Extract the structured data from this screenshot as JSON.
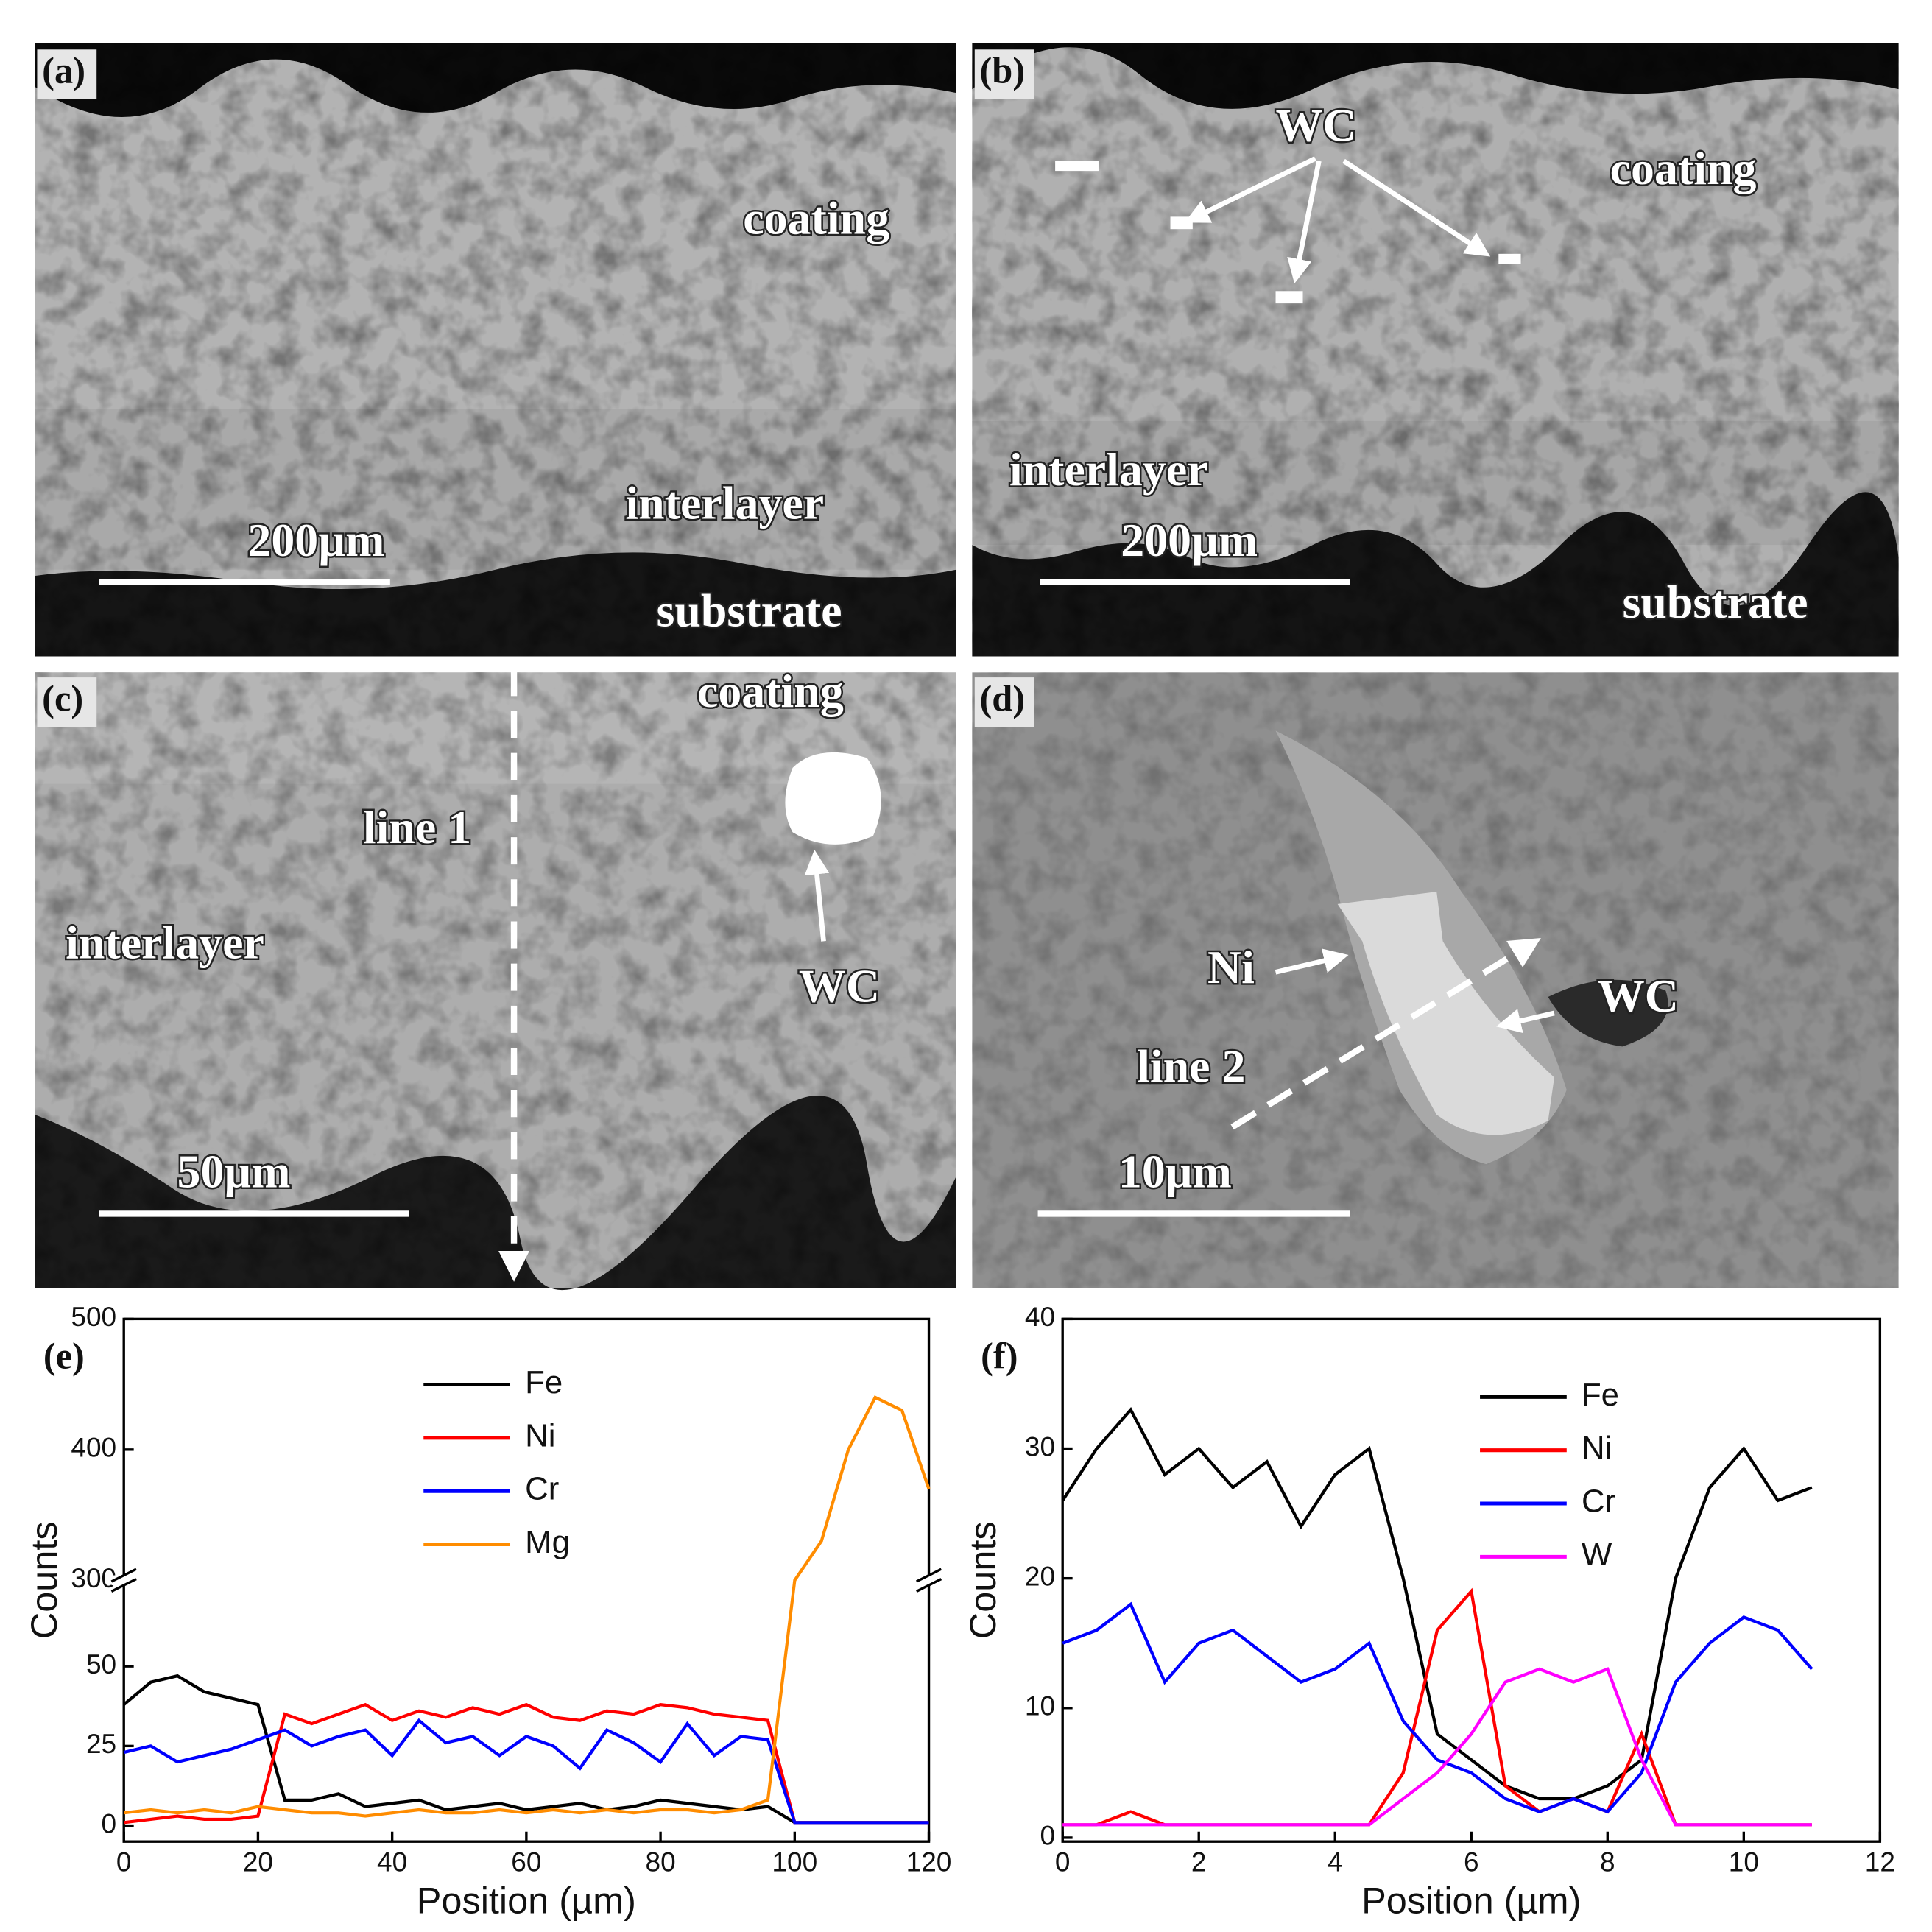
{
  "panels": [
    {
      "label": "(a)",
      "annotations": [
        "coating",
        "interlayer",
        "substrate"
      ],
      "scale_bar": "200µm"
    },
    {
      "label": "(b)",
      "annotations": [
        "WC",
        "coating",
        "interlayer",
        "substrate"
      ],
      "scale_bar": "200µm"
    },
    {
      "label": "(c)",
      "annotations": [
        "coating",
        "line 1",
        "interlayer",
        "WC"
      ],
      "scale_bar": "50µm"
    },
    {
      "label": "(d)",
      "annotations": [
        "Ni",
        "WC",
        "line 2"
      ],
      "scale_bar": "10µm"
    }
  ],
  "chart_data": [
    {
      "type": "line",
      "label": "(e)",
      "xlabel": "Position (µm)",
      "ylabel": "Counts",
      "x": [
        0,
        4,
        8,
        12,
        16,
        20,
        24,
        28,
        32,
        36,
        40,
        44,
        48,
        52,
        56,
        60,
        64,
        68,
        72,
        76,
        80,
        84,
        88,
        92,
        96,
        100,
        104,
        108,
        112,
        116,
        120
      ],
      "xlim": [
        0,
        120
      ],
      "xticks": [
        0,
        20,
        40,
        60,
        80,
        100,
        120
      ],
      "ylim": [
        -5,
        500
      ],
      "ybreak": [
        77,
        300
      ],
      "yticks": [
        0,
        25,
        50,
        300,
        400,
        500
      ],
      "series": [
        {
          "name": "Fe",
          "color": "#000000",
          "values": [
            38,
            45,
            47,
            42,
            40,
            38,
            8,
            8,
            10,
            6,
            7,
            8,
            5,
            6,
            7,
            5,
            6,
            7,
            5,
            6,
            8,
            7,
            6,
            5,
            6,
            1,
            1,
            1,
            1,
            1,
            1
          ]
        },
        {
          "name": "Ni",
          "color": "#ff0000",
          "values": [
            1,
            2,
            3,
            2,
            2,
            3,
            35,
            32,
            35,
            38,
            33,
            36,
            34,
            37,
            35,
            38,
            34,
            33,
            36,
            35,
            38,
            37,
            35,
            34,
            33,
            1,
            1,
            1,
            1,
            1,
            1
          ]
        },
        {
          "name": "Cr",
          "color": "#0000ff",
          "values": [
            23,
            25,
            20,
            22,
            24,
            27,
            30,
            25,
            28,
            30,
            22,
            33,
            26,
            28,
            22,
            28,
            25,
            18,
            30,
            26,
            20,
            32,
            22,
            28,
            27,
            1,
            1,
            1,
            1,
            1,
            1
          ]
        },
        {
          "name": "Mg",
          "color": "#ff8c00",
          "values": [
            4,
            5,
            4,
            5,
            4,
            6,
            5,
            4,
            4,
            3,
            4,
            5,
            4,
            4,
            5,
            4,
            5,
            4,
            5,
            4,
            5,
            5,
            4,
            5,
            8,
            300,
            330,
            400,
            440,
            430,
            370
          ]
        }
      ]
    },
    {
      "type": "line",
      "label": "(f)",
      "xlabel": "Position (µm)",
      "ylabel": "Counts",
      "x": [
        0,
        0.5,
        1,
        1.5,
        2,
        2.5,
        3,
        3.5,
        4,
        4.5,
        5,
        5.5,
        6,
        6.5,
        7,
        7.5,
        8,
        8.5,
        9,
        9.5,
        10,
        10.5,
        11
      ],
      "xlim": [
        0,
        12
      ],
      "xticks": [
        0,
        2,
        4,
        6,
        8,
        10,
        12
      ],
      "ylim": [
        -0.3,
        40
      ],
      "yticks": [
        0,
        10,
        20,
        30,
        40
      ],
      "series": [
        {
          "name": "Fe",
          "color": "#000000",
          "values": [
            26,
            30,
            33,
            28,
            30,
            27,
            29,
            24,
            28,
            30,
            20,
            8,
            6,
            4,
            3,
            3,
            4,
            6,
            20,
            27,
            30,
            26,
            27
          ]
        },
        {
          "name": "Ni",
          "color": "#ff0000",
          "values": [
            1,
            1,
            2,
            1,
            1,
            1,
            1,
            1,
            1,
            1,
            5,
            16,
            19,
            4,
            2,
            3,
            2,
            8,
            1,
            1,
            1,
            1,
            1
          ]
        },
        {
          "name": "Cr",
          "color": "#0000ff",
          "values": [
            15,
            16,
            18,
            12,
            15,
            16,
            14,
            12,
            13,
            15,
            9,
            6,
            5,
            3,
            2,
            3,
            2,
            5,
            12,
            15,
            17,
            16,
            13
          ]
        },
        {
          "name": "W",
          "color": "#ff00ff",
          "values": [
            1,
            1,
            1,
            1,
            1,
            1,
            1,
            1,
            1,
            1,
            3,
            5,
            8,
            12,
            13,
            12,
            13,
            6,
            1,
            1,
            1,
            1,
            1
          ]
        }
      ]
    }
  ]
}
